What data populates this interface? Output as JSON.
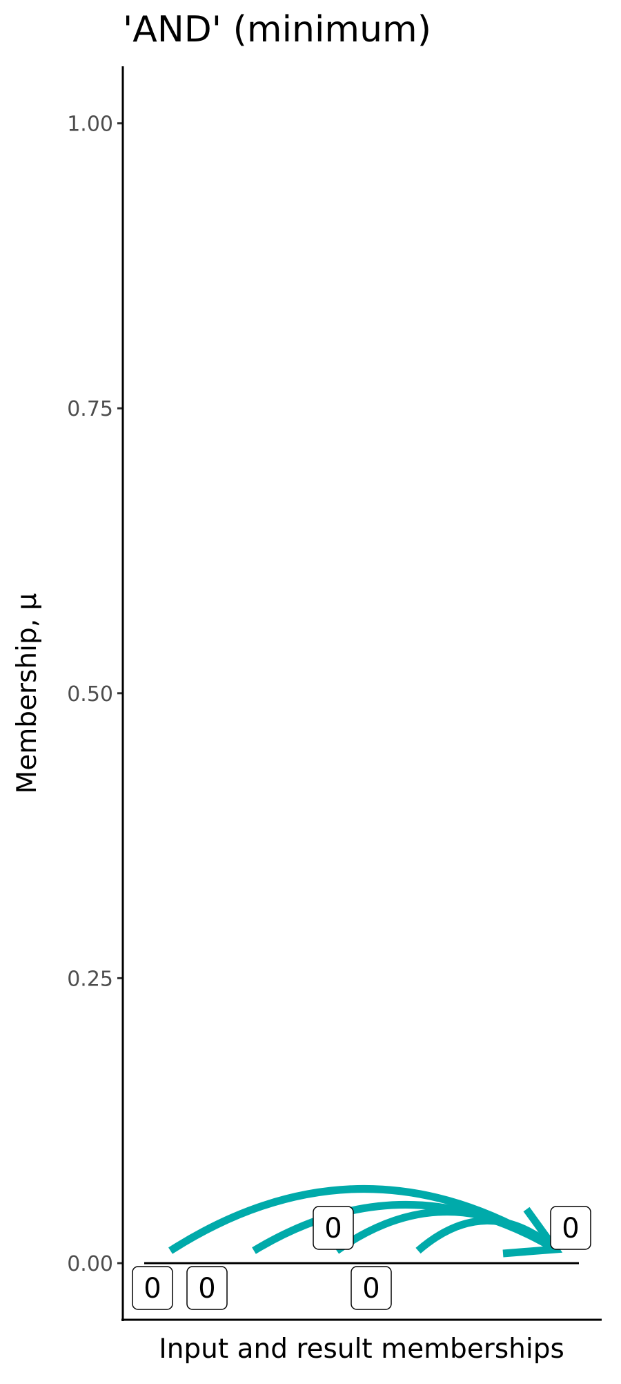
{
  "chart_data": {
    "type": "line",
    "title": "'AND' (minimum)",
    "xlabel": "Input and result memberships",
    "ylabel": "Membership, μ",
    "ylim": [
      -0.1,
      1.05
    ],
    "yticks": [
      0,
      0.25,
      0.5,
      0.75,
      1
    ],
    "ytick_labels": [
      "0.00",
      "0.25",
      "0.50",
      "0.75",
      "1.00"
    ],
    "grid": false,
    "inputs": [
      {
        "label": "0",
        "value": 0
      },
      {
        "label": "0",
        "value": 0
      },
      {
        "label": "0",
        "value": 0
      },
      {
        "label": "0",
        "value": 0
      }
    ],
    "result": {
      "label": "0",
      "value": 0
    },
    "arrow_color": "#00AAAA"
  }
}
